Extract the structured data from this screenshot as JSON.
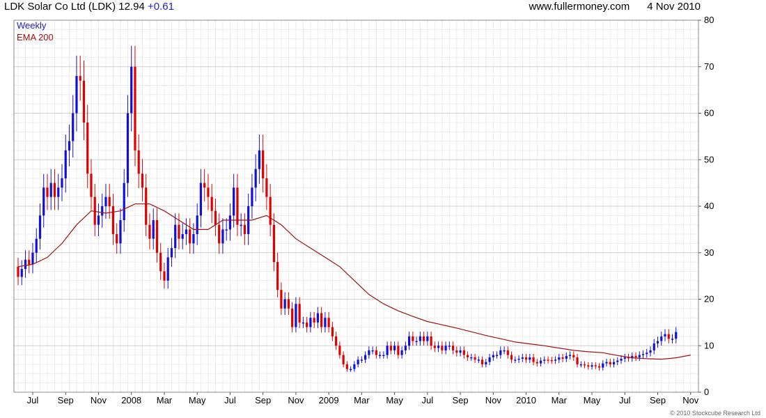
{
  "header": {
    "title": "LDK Solar Co Ltd (LDK)",
    "price": "12.94",
    "change": "+0.61",
    "website": "www.fullermoney.com",
    "date": "4 Nov 2010"
  },
  "legend": {
    "weekly": "Weekly",
    "ema": "EMA 200"
  },
  "copyright": "© 2010 Stockcube Research Ltd",
  "colors": {
    "up": "#1010d8",
    "down": "#e00000",
    "ema": "#a01010",
    "grid": "#d8d8d8"
  },
  "chart_data": {
    "type": "candlestick",
    "title": "LDK Solar Co Ltd (LDK) 12.94 +0.61",
    "ylim": [
      0,
      80
    ],
    "y_ticks": [
      0,
      10,
      20,
      30,
      40,
      50,
      60,
      70,
      80
    ],
    "grid": true,
    "y_axis_side": "right",
    "x_ticks": [
      {
        "label": "Jul",
        "week": 4
      },
      {
        "label": "Sep",
        "week": 13
      },
      {
        "label": "Nov",
        "week": 22
      },
      {
        "label": "2008",
        "week": 31
      },
      {
        "label": "Mar",
        "week": 40
      },
      {
        "label": "May",
        "week": 49
      },
      {
        "label": "Jul",
        "week": 58
      },
      {
        "label": "Sep",
        "week": 67
      },
      {
        "label": "Nov",
        "week": 76
      },
      {
        "label": "2009",
        "week": 85
      },
      {
        "label": "Mar",
        "week": 94
      },
      {
        "label": "May",
        "week": 103
      },
      {
        "label": "Jul",
        "week": 112
      },
      {
        "label": "Sep",
        "week": 121
      },
      {
        "label": "Nov",
        "week": 130
      },
      {
        "label": "2010",
        "week": 139
      },
      {
        "label": "Mar",
        "week": 148
      },
      {
        "label": "May",
        "week": 157
      },
      {
        "label": "Jul",
        "week": 166
      },
      {
        "label": "Sep",
        "week": 175
      },
      {
        "label": "Nov",
        "week": 184
      }
    ],
    "series": [
      {
        "name": "Weekly",
        "close": [
          24.8,
          26.5,
          28.5,
          27.5,
          30,
          33,
          38,
          44,
          42,
          45,
          42,
          44,
          46,
          52,
          54,
          60,
          68,
          67,
          58,
          47,
          42,
          36,
          38,
          40,
          42,
          40,
          34,
          32,
          37,
          45,
          60,
          70,
          52,
          47,
          44,
          36,
          33,
          37,
          30,
          26,
          24,
          29,
          31,
          36,
          33,
          34,
          35,
          32,
          34,
          38,
          45,
          44,
          42,
          39,
          36,
          32,
          35,
          35,
          38,
          44,
          36,
          36,
          34,
          40,
          44,
          48,
          52,
          46,
          42,
          36,
          28,
          22,
          18,
          20,
          18,
          14,
          19,
          15,
          15,
          14,
          16,
          15,
          17,
          14,
          16,
          14,
          12,
          10,
          8,
          6,
          5,
          5,
          6,
          7,
          7,
          8,
          9,
          9,
          8,
          8,
          8,
          10,
          9,
          10,
          8,
          9,
          10,
          12,
          11,
          11,
          12,
          11,
          12,
          10,
          9.5,
          10,
          9,
          10,
          10,
          9,
          8.5,
          9,
          8,
          7.5,
          7.5,
          7,
          7,
          6,
          6.5,
          7.5,
          8,
          8,
          9,
          9,
          8,
          7,
          7,
          7.2,
          7.5,
          7,
          7.5,
          6.5,
          6.2,
          6.8,
          7,
          6.9,
          6.8,
          7,
          7.5,
          7.2,
          7.8,
          8,
          7.5,
          6,
          6,
          5.8,
          5.5,
          5.8,
          5.6,
          5.3,
          6.2,
          6.5,
          6,
          6.5,
          6.8,
          7.2,
          7.5,
          7.3,
          7.8,
          7.5,
          8,
          8.2,
          8.5,
          9,
          10.5,
          11,
          12,
          12.5,
          11.5,
          11.5,
          12.94
        ],
        "open": [
          27,
          24.8,
          26.5,
          28.5,
          27.5,
          30,
          33,
          38,
          44,
          42,
          45,
          42,
          44,
          46,
          52,
          54,
          60,
          68,
          67,
          58,
          47,
          42,
          36,
          38,
          40,
          42,
          40,
          34,
          32,
          37,
          45,
          60,
          70,
          52,
          47,
          44,
          36,
          33,
          37,
          30,
          26,
          24,
          29,
          31,
          36,
          33,
          34,
          35,
          32,
          34,
          38,
          45,
          44,
          42,
          39,
          36,
          32,
          35,
          35,
          38,
          44,
          36,
          36,
          34,
          40,
          44,
          48,
          52,
          46,
          42,
          36,
          28,
          22,
          18,
          20,
          18,
          14,
          19,
          15,
          15,
          14,
          16,
          15,
          17,
          14,
          16,
          14,
          12,
          10,
          8,
          6,
          5,
          5,
          6,
          7,
          7,
          8,
          9,
          9,
          8,
          8,
          8,
          10,
          9,
          10,
          8,
          9,
          10,
          12,
          11,
          11,
          12,
          11,
          12,
          10,
          9.5,
          10,
          9,
          10,
          10,
          9,
          8.5,
          9,
          8,
          7.5,
          7.5,
          7,
          7,
          6,
          6.5,
          7.5,
          8,
          8,
          9,
          9,
          8,
          7,
          7,
          7.2,
          7.5,
          7,
          7.5,
          6.5,
          6.2,
          6.8,
          7,
          6.9,
          6.8,
          7,
          7.5,
          7.2,
          7.8,
          8,
          7.5,
          6,
          6,
          5.8,
          5.5,
          5.8,
          5.6,
          5.3,
          6.2,
          6.5,
          6,
          6.5,
          6.8,
          7.2,
          7.5,
          7.3,
          7.8,
          7.5,
          8,
          8.2,
          8.5,
          9,
          10.5,
          11,
          12,
          12.5,
          11.5,
          11.5
        ]
      },
      {
        "name": "EMA 200",
        "points": [
          [
            0,
            27
          ],
          [
            4,
            27.5
          ],
          [
            8,
            29
          ],
          [
            12,
            32
          ],
          [
            16,
            36
          ],
          [
            20,
            39
          ],
          [
            24,
            38.5
          ],
          [
            28,
            39
          ],
          [
            32,
            40.5
          ],
          [
            36,
            40.5
          ],
          [
            40,
            39
          ],
          [
            44,
            37
          ],
          [
            48,
            35
          ],
          [
            52,
            35
          ],
          [
            56,
            37
          ],
          [
            60,
            37
          ],
          [
            64,
            37
          ],
          [
            68,
            38
          ],
          [
            72,
            36
          ],
          [
            76,
            33
          ],
          [
            80,
            31
          ],
          [
            84,
            29
          ],
          [
            88,
            27
          ],
          [
            92,
            24
          ],
          [
            96,
            21
          ],
          [
            100,
            19
          ],
          [
            104,
            17.5
          ],
          [
            108,
            16.3
          ],
          [
            112,
            15.2
          ],
          [
            116,
            14.5
          ],
          [
            120,
            13.8
          ],
          [
            124,
            13
          ],
          [
            128,
            12.2
          ],
          [
            132,
            11.5
          ],
          [
            136,
            10.8
          ],
          [
            140,
            10.4
          ],
          [
            144,
            10
          ],
          [
            148,
            9.5
          ],
          [
            152,
            9
          ],
          [
            156,
            8.7
          ],
          [
            160,
            8.5
          ],
          [
            164,
            7.9
          ],
          [
            168,
            7.4
          ],
          [
            172,
            7.2
          ],
          [
            176,
            7.1
          ],
          [
            180,
            7.4
          ],
          [
            184,
            8
          ]
        ]
      }
    ]
  }
}
